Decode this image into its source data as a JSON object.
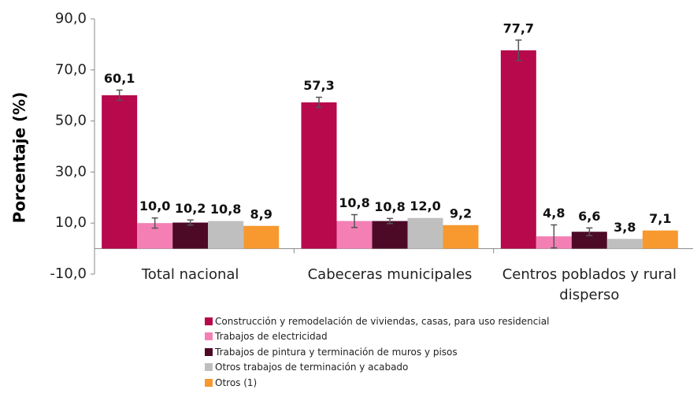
{
  "chart_data": {
    "type": "bar",
    "y_label": "Porcentaje (%)",
    "categories": [
      "Total nacional",
      "Cabeceras municipales",
      "Centros poblados y rural disperso"
    ],
    "series": [
      {
        "name": "Construcción y remodelación de viviendas, casas, para uso residencial",
        "color": "#b7094c",
        "values": [
          60.1,
          57.3,
          77.7
        ],
        "value_labels": [
          "60,1",
          "57,3",
          "77,7"
        ],
        "errors": [
          2,
          2,
          4
        ]
      },
      {
        "name": "Trabajos de electricidad",
        "color": "#f47fb5",
        "values": [
          10.0,
          10.8,
          4.8
        ],
        "value_labels": [
          "10,0",
          "10,8",
          "4,8"
        ],
        "errors": [
          2,
          2.5,
          4.5
        ]
      },
      {
        "name": "Trabajos de pintura y terminación de muros y pisos",
        "color": "#4d0a27",
        "values": [
          10.2,
          10.8,
          6.6
        ],
        "value_labels": [
          "10,2",
          "10,8",
          "6,6"
        ],
        "errors": [
          1,
          1,
          1.5
        ]
      },
      {
        "name": "Otros trabajos de terminación y acabado",
        "color": "#bfbfbf",
        "values": [
          10.8,
          12.0,
          3.8
        ],
        "value_labels": [
          "10,8",
          "12,0",
          "3,8"
        ],
        "errors": [
          null,
          null,
          null
        ]
      },
      {
        "name": "Otros (1)",
        "color": "#f7992e",
        "values": [
          8.9,
          9.2,
          7.1
        ],
        "value_labels": [
          "8,9",
          "9,2",
          "7,1"
        ],
        "errors": [
          null,
          null,
          null
        ]
      }
    ],
    "ylim": [
      -10,
      90
    ],
    "yticks": [
      {
        "value": -10,
        "label": "-10,0"
      },
      {
        "value": 10,
        "label": "10,0"
      },
      {
        "value": 30,
        "label": "30,0"
      },
      {
        "value": 50,
        "label": "50,0"
      },
      {
        "value": 70,
        "label": "70,0"
      },
      {
        "value": 90,
        "label": "90,0"
      }
    ],
    "legend": "bottom"
  }
}
